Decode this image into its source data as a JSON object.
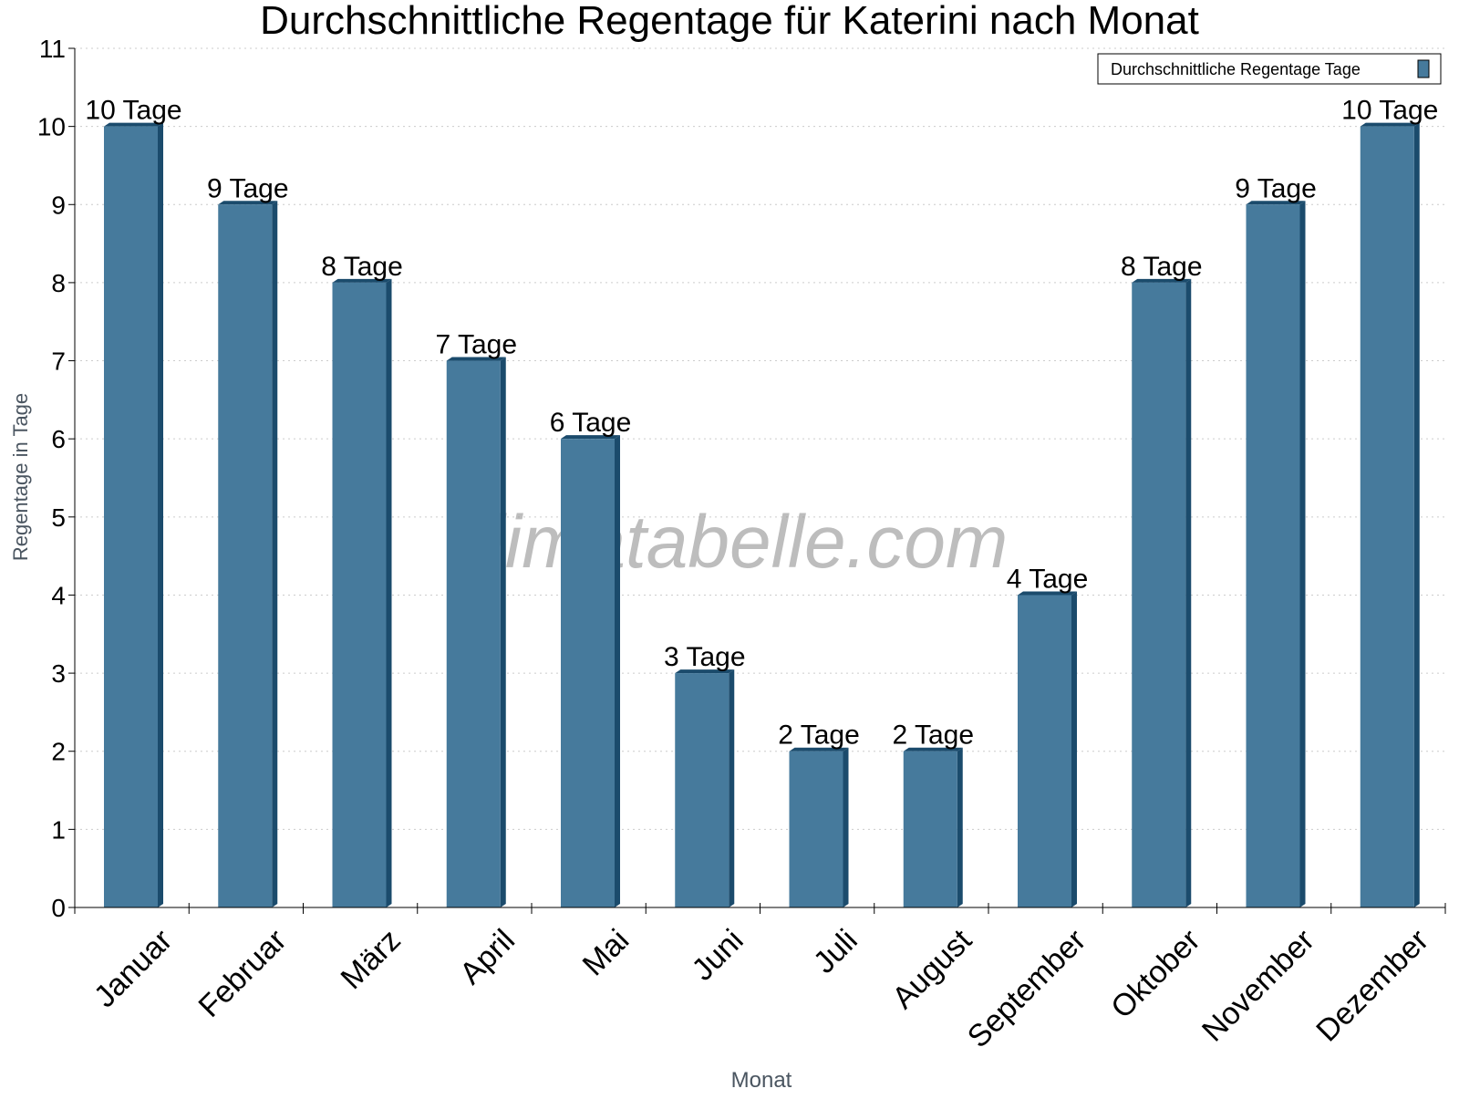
{
  "chart_data": {
    "type": "bar",
    "title": "Durchschnittliche Regentage für Katerini nach Monat",
    "xlabel": "Monat",
    "ylabel": "Regentage in Tage",
    "categories": [
      "Januar",
      "Februar",
      "März",
      "April",
      "Mai",
      "Juni",
      "Juli",
      "August",
      "September",
      "Oktober",
      "November",
      "Dezember"
    ],
    "series": [
      {
        "name": "Durchschnittliche Regentage Tage",
        "values": [
          10,
          9,
          8,
          7,
          6,
          3,
          2,
          2,
          4,
          8,
          9,
          10
        ]
      }
    ],
    "data_labels": [
      "10 Tage",
      "9 Tage",
      "8 Tage",
      "7 Tage",
      "6 Tage",
      "3 Tage",
      "2 Tage",
      "2 Tage",
      "4 Tage",
      "8 Tage",
      "9 Tage",
      "10 Tage"
    ],
    "yticks": [
      "0",
      "1",
      "2",
      "3",
      "4",
      "5",
      "6",
      "7",
      "8",
      "9",
      "10",
      "11"
    ],
    "ylim": [
      0,
      11
    ],
    "grid": true,
    "legend_position": "top-right",
    "colors": {
      "bar": "#467a9c",
      "bar_side": "#1b4b6c",
      "grid": "#cccccc"
    },
    "watermark": "klimatabelle.com"
  }
}
